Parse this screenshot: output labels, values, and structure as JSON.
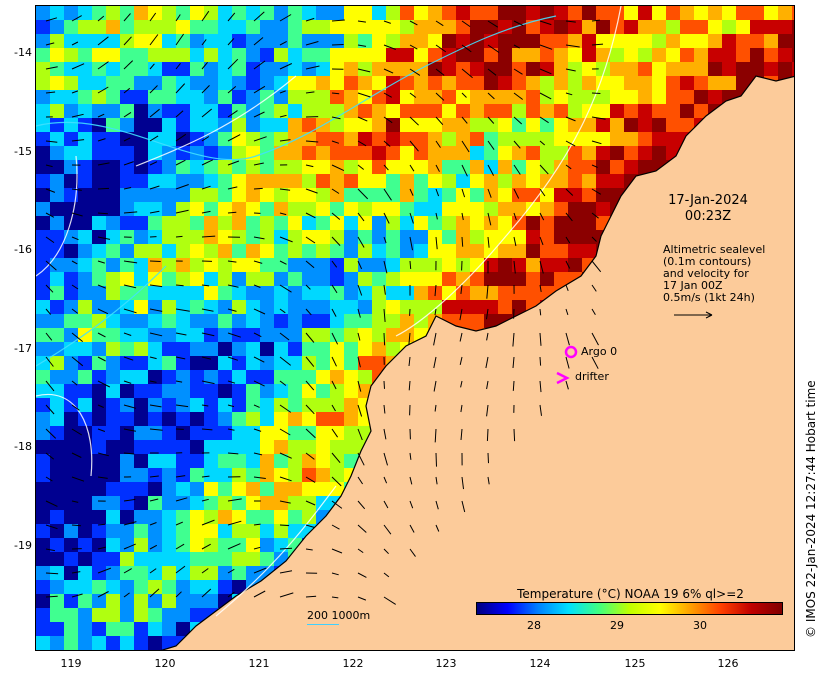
{
  "map": {
    "date_line1": "17-Jan-2024",
    "date_line2": "00:23Z",
    "altimetry_note": [
      "Altimetric sealevel",
      "(0.1m contours)",
      "and velocity for",
      "17 Jan 00Z",
      "0.5m/s (1kt 24h)"
    ],
    "legend": {
      "argo_label": "Argo 0",
      "drifter_label": "drifter",
      "argo_color": "#ff00ff",
      "drifter_color": "#ff00ff"
    },
    "colorbar": {
      "title": "Temperature (°C) NOAA 19 6% ql>=2",
      "ticks": [
        "28",
        "29",
        "30"
      ],
      "range": [
        27.4,
        31.1
      ]
    },
    "scale_label": "200  1000m",
    "credit": "© IMOS 22-Jan-2024 12:27:44 Hobart time",
    "y_axis_labels": [
      "-14",
      "-15",
      "-16",
      "-17",
      "-18",
      "-19"
    ],
    "x_axis_labels": [
      "119",
      "120",
      "121",
      "122",
      "123",
      "124",
      "125",
      "126"
    ],
    "land_color": "#fccb9a",
    "coast_color": "#000000"
  }
}
